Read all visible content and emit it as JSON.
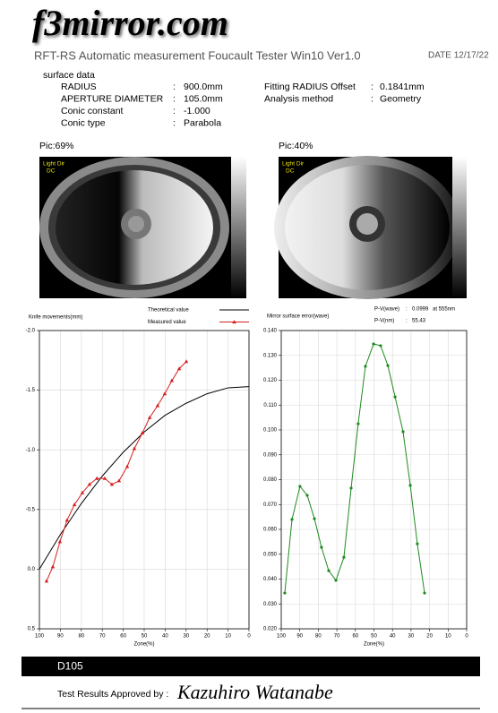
{
  "header": {
    "logo": "f3mirror.com",
    "title": "RFT-RS Automatic measurement Foucault Tester Win10 Ver1.0",
    "date": "DATE 12/17/22"
  },
  "surface_data": {
    "heading": "surface data",
    "left": [
      {
        "label": "RADIUS",
        "separator": ":",
        "value": "900.0mm"
      },
      {
        "label": "APERTURE DIAMETER",
        "separator": ":",
        "value": "105.0mm"
      },
      {
        "label": "Conic constant",
        "separator": ":",
        "value": "-1.000"
      },
      {
        "label": "Conic type",
        "separator": ":",
        "value": "Parabola"
      }
    ],
    "right": [
      {
        "label": "Fitting RADIUS Offset",
        "separator": ":",
        "value": "0.1841mm"
      },
      {
        "label": "Analysis method",
        "separator": ":",
        "value": "Geometry"
      }
    ]
  },
  "images": [
    {
      "label": "Pic:69%",
      "light_dir": "Light Dir",
      "light_code": "DC"
    },
    {
      "label": "Pic:40%",
      "light_dir": "Light Dir",
      "light_code": "DC"
    }
  ],
  "chart_data": [
    {
      "type": "line",
      "y_label": "Knife movements(mm)",
      "x_label": "Zone(%)",
      "xlim": [
        100,
        0
      ],
      "xticks": [
        100,
        90,
        80,
        70,
        60,
        50,
        40,
        30,
        20,
        10,
        0
      ],
      "ylim": [
        0.5,
        -2
      ],
      "yticks": [
        0.5,
        {
          "value": 0,
          "label": "0.0"
        },
        -0.5,
        {
          "value": -1,
          "label": "-1.0"
        },
        -1.5,
        {
          "value": -2,
          "label": "-2.0"
        }
      ],
      "grid": true,
      "legend": "top",
      "series": [
        {
          "name": "Theoretical value",
          "color": "#000000",
          "marker": "none",
          "x": [
            100,
            90,
            80,
            70,
            60,
            50,
            40,
            30,
            20,
            10,
            0
          ],
          "values": [
            0,
            -0.29,
            -0.55,
            -0.78,
            -0.98,
            -1.15,
            -1.29,
            -1.39,
            -1.47,
            -1.52,
            -1.53
          ]
        },
        {
          "name": "Measured value",
          "color": "#d42020",
          "marker": "triangle",
          "x": [
            96.6,
            93.6,
            90.2,
            86.8,
            83.3,
            79.5,
            76.1,
            72.6,
            68.8,
            65.4,
            62.0,
            58.1,
            54.7,
            50.9,
            47.4,
            43.6,
            40.2,
            36.8,
            33.3,
            29.9
          ],
          "values": [
            0.1,
            -0.02,
            -0.23,
            -0.41,
            -0.54,
            -0.64,
            -0.71,
            -0.76,
            -0.76,
            -0.71,
            -0.74,
            -0.86,
            -1.01,
            -1.14,
            -1.27,
            -1.37,
            -1.47,
            -1.58,
            -1.68,
            -1.74
          ]
        }
      ]
    },
    {
      "type": "line",
      "y_label": "Mirror surface error(wave)",
      "x_label": "Zone(%)",
      "annotations": [
        {
          "label": "P-V(wave)",
          "separator": ":",
          "value": "0.0999",
          "note": "at 555nm"
        },
        {
          "label": "P-V(nm)",
          "separator": ":",
          "value": "55.43"
        }
      ],
      "xlim": [
        100,
        0
      ],
      "xticks": [
        100,
        90,
        80,
        70,
        60,
        50,
        40,
        30,
        20,
        10,
        0
      ],
      "ylim": [
        0.02,
        0.14
      ],
      "yticks": [
        {
          "value": 0.02,
          "label": "0.020"
        },
        {
          "value": 0.03,
          "label": "0.030"
        },
        {
          "value": 0.04,
          "label": "0.040"
        },
        {
          "value": 0.05,
          "label": "0.050"
        },
        {
          "value": 0.06,
          "label": "0.060"
        },
        {
          "value": 0.07,
          "label": "0.070"
        },
        {
          "value": 0.08,
          "label": "0.080"
        },
        {
          "value": 0.09,
          "label": "0.090"
        },
        {
          "value": 0.1,
          "label": "0.100"
        },
        {
          "value": 0.11,
          "label": "0.110"
        },
        {
          "value": 0.12,
          "label": "0.120"
        },
        {
          "value": 0.13,
          "label": "0.130"
        },
        {
          "value": 0.14,
          "label": "0.140"
        }
      ],
      "grid": true,
      "series": [
        {
          "color": "#1f8a1f",
          "marker": "dot",
          "x": [
            98.1,
            94.2,
            89.9,
            86.0,
            82.1,
            78.3,
            74.4,
            70.5,
            66.2,
            62.3,
            58.5,
            54.6,
            50.2,
            46.4,
            42.5,
            38.6,
            34.3,
            30.4,
            26.6,
            22.7
          ],
          "values": [
            0.0344,
            0.064,
            0.0773,
            0.0737,
            0.0643,
            0.0528,
            0.0434,
            0.0395,
            0.0488,
            0.0766,
            0.1025,
            0.1256,
            0.1346,
            0.1339,
            0.1259,
            0.1133,
            0.0993,
            0.0777,
            0.0542,
            0.0344
          ]
        }
      ]
    }
  ],
  "footer": {
    "id": "D105",
    "approval": "Test Results Approved by :",
    "signature": "Kazuhiro Watanabe"
  }
}
